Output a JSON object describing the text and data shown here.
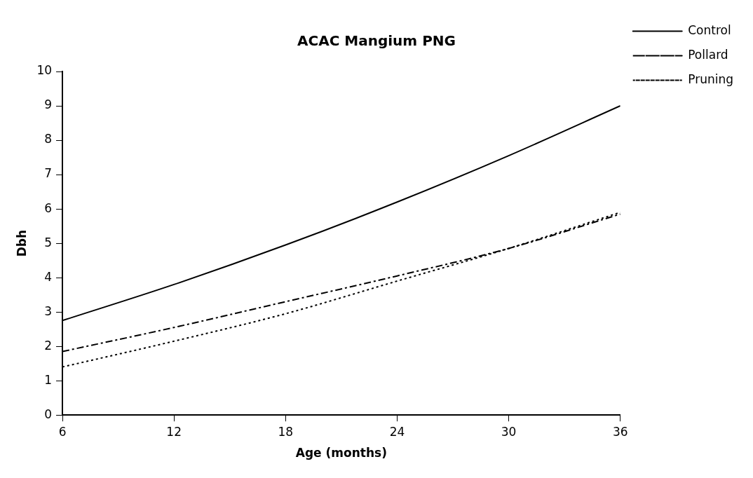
{
  "chart_data": {
    "type": "line",
    "title": "ACAC Mangium PNG",
    "xlabel": "Age (months)",
    "ylabel": "Dbh",
    "x": [
      6,
      12,
      18,
      24,
      30,
      36
    ],
    "xlim": [
      6,
      36
    ],
    "xticks": [
      6,
      12,
      18,
      24,
      30,
      36
    ],
    "ylim": [
      0,
      10
    ],
    "yticks": [
      0,
      1,
      2,
      3,
      4,
      5,
      6,
      7,
      8,
      9,
      10
    ],
    "legend": "top right",
    "marker": "none",
    "series": [
      {
        "name": "Control",
        "color": "#000000",
        "line_style": "solid",
        "values": [
          2.75,
          3.8,
          4.95,
          6.2,
          7.55,
          9.0
        ]
      },
      {
        "name": "Pollard",
        "color": "#000000",
        "line_style": "dashed",
        "values": [
          1.85,
          2.55,
          3.3,
          4.05,
          4.85,
          5.85
        ]
      },
      {
        "name": "Pruning",
        "color": "#000000",
        "line_style": "dotted",
        "values": [
          1.4,
          2.15,
          2.95,
          3.9,
          4.85,
          5.9
        ]
      }
    ]
  }
}
